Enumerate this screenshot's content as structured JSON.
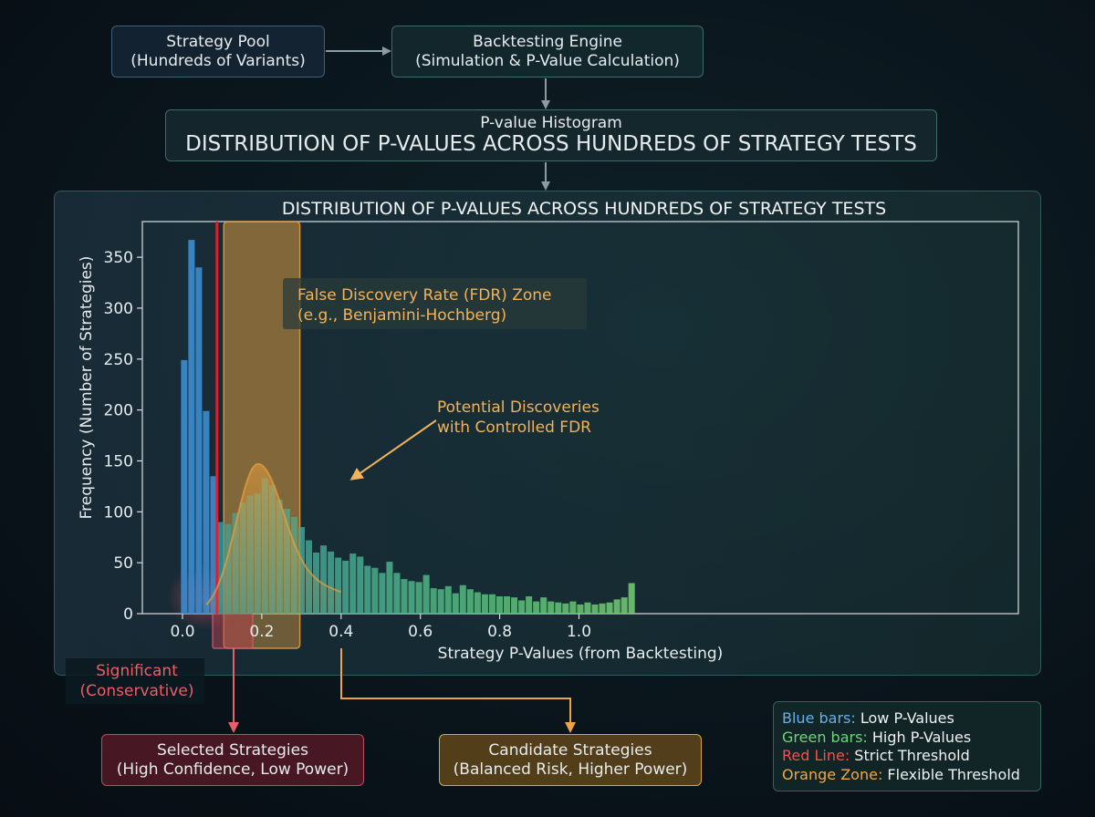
{
  "flow": {
    "pool": {
      "line1": "Strategy Pool",
      "line2": "(Hundreds of Variants)"
    },
    "engine": {
      "line1": "Backtesting Engine",
      "line2": "(Simulation & P-Value Calculation)"
    },
    "histogram_box": {
      "line1": "P-value Histogram",
      "line2": "DISTRIBUTION OF P-VALUES ACROSS HUNDREDS OF STRATEGY TESTS"
    }
  },
  "chart_data": {
    "type": "bar",
    "title": "DISTRIBUTION OF P-VALUES ACROSS HUNDREDS OF STRATEGY TESTS",
    "xlabel": "Strategy P-Values (from Backtesting)",
    "ylabel": "Frequency (Number of Strategies)",
    "xlim": [
      -0.05,
      1.05
    ],
    "ylim": [
      0,
      385
    ],
    "x_ticks": [
      0.0,
      0.2,
      0.4,
      0.6,
      0.8,
      1.0
    ],
    "x_tick_labels": [
      "0.0",
      "0.2",
      "0.4",
      "0.6",
      "0.8",
      "1.0"
    ],
    "y_ticks": [
      0,
      50,
      100,
      150,
      200,
      250,
      300,
      350
    ],
    "y_tick_labels": [
      "0",
      "50",
      "100",
      "150",
      "200",
      "250",
      "300",
      "350"
    ],
    "bin_width": 0.0185,
    "bin_start": -0.005,
    "values": [
      249,
      367,
      340,
      199,
      135,
      90,
      88,
      99,
      109,
      116,
      118,
      133,
      126,
      112,
      103,
      95,
      85,
      72,
      60,
      67,
      61,
      55,
      52,
      59,
      56,
      47,
      45,
      40,
      51,
      40,
      34,
      32,
      31,
      38,
      25,
      24,
      27,
      20,
      28,
      24,
      21,
      19,
      19,
      17,
      17,
      16,
      13,
      17,
      12,
      16,
      12,
      11,
      10,
      12,
      9,
      11,
      9,
      10,
      11,
      14,
      16,
      30
    ],
    "low_count": 5,
    "threshold": 0.087,
    "fdr_zone": [
      0.104,
      0.296
    ],
    "fdr_curve": {
      "peak_x": 0.19,
      "peak_y": 147,
      "sigma": 0.055,
      "base_y": 75
    },
    "significant_band": [
      0.074,
      0.087
    ],
    "colors": {
      "low": "#3a87c8",
      "high_start": "#2f9a9c",
      "high_end": "#73cf70",
      "threshold": "#e01e2e",
      "zone": "#e6a040"
    }
  },
  "annotations": {
    "fdr_line1": "False Discovery Rate (FDR) Zone",
    "fdr_line2": "(e.g., Benjamini-Hochberg)",
    "potential_line1": "Potential Discoveries",
    "potential_line2": "with Controlled FDR",
    "significant_line1": "Significant",
    "significant_line2": "(Conservative)"
  },
  "outcomes": {
    "selected": {
      "line1": "Selected Strategies",
      "line2": "(High Confidence, Low Power)"
    },
    "candidate": {
      "line1": "Candidate Strategies",
      "line2": "(Balanced Risk, Higher Power)"
    }
  },
  "legend": [
    {
      "key": "Blue bars:",
      "text": " Low P-Values",
      "color": "#6aaee8"
    },
    {
      "key": "Green bars:",
      "text": " High P-Values",
      "color": "#6cd67a"
    },
    {
      "key": "Red Line:",
      "text": " Strict Threshold",
      "color": "#ff4b4b"
    },
    {
      "key": "Orange Zone:",
      "text": " Flexible Threshold",
      "color": "#f0a848"
    }
  ]
}
